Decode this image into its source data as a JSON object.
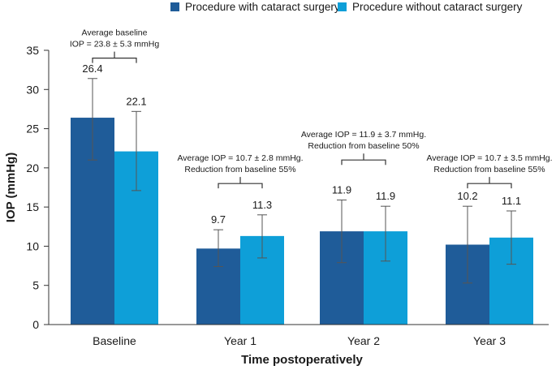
{
  "chart_data": {
    "type": "bar",
    "title": "",
    "xlabel": "Time postoperatively",
    "ylabel": "IOP (mmHg)",
    "ylim": [
      0,
      35
    ],
    "yticks": [
      0,
      5,
      10,
      15,
      20,
      25,
      30,
      35
    ],
    "grid": false,
    "legend_position": "top",
    "categories": [
      "Baseline",
      "Year 1",
      "Year 2",
      "Year 3"
    ],
    "series": [
      {
        "name": "Procedure with cataract surgery",
        "color": "#1f5c99",
        "values": [
          26.4,
          9.7,
          11.9,
          10.2
        ],
        "value_labels": [
          "26.4",
          "9.7",
          "11.9",
          "10.2"
        ],
        "error_low": [
          21.0,
          7.4,
          7.9,
          5.3
        ],
        "error_high": [
          31.4,
          12.1,
          15.9,
          15.1
        ]
      },
      {
        "name": "Procedure without cataract surgery",
        "color": "#0e9fd8",
        "values": [
          22.1,
          11.3,
          11.9,
          11.1
        ],
        "value_labels": [
          "22.1",
          "11.3",
          "11.9",
          "11.1"
        ],
        "error_low": [
          17.1,
          8.5,
          8.1,
          7.7
        ],
        "error_high": [
          27.2,
          14.0,
          15.1,
          14.5
        ]
      }
    ],
    "annotations": [
      {
        "category": "Baseline",
        "lines": [
          "Average baseline",
          "IOP = 23.8 ± 5.3 mmHg"
        ],
        "bracket_y": 34.0
      },
      {
        "category": "Year 1",
        "lines": [
          "Average IOP = 10.7 ± 2.8 mmHg.",
          "Reduction from baseline 55%"
        ],
        "bracket_y": 18.0
      },
      {
        "category": "Year 2",
        "lines": [
          "Average IOP = 11.9 ± 3.7 mmHg.",
          "Reduction from baseline 50%"
        ],
        "bracket_y": 21.0
      },
      {
        "category": "Year 3",
        "lines": [
          "Average IOP = 10.7 ± 3.5 mmHg.",
          "Reduction from baseline 55%"
        ],
        "bracket_y": 18.0
      }
    ]
  }
}
